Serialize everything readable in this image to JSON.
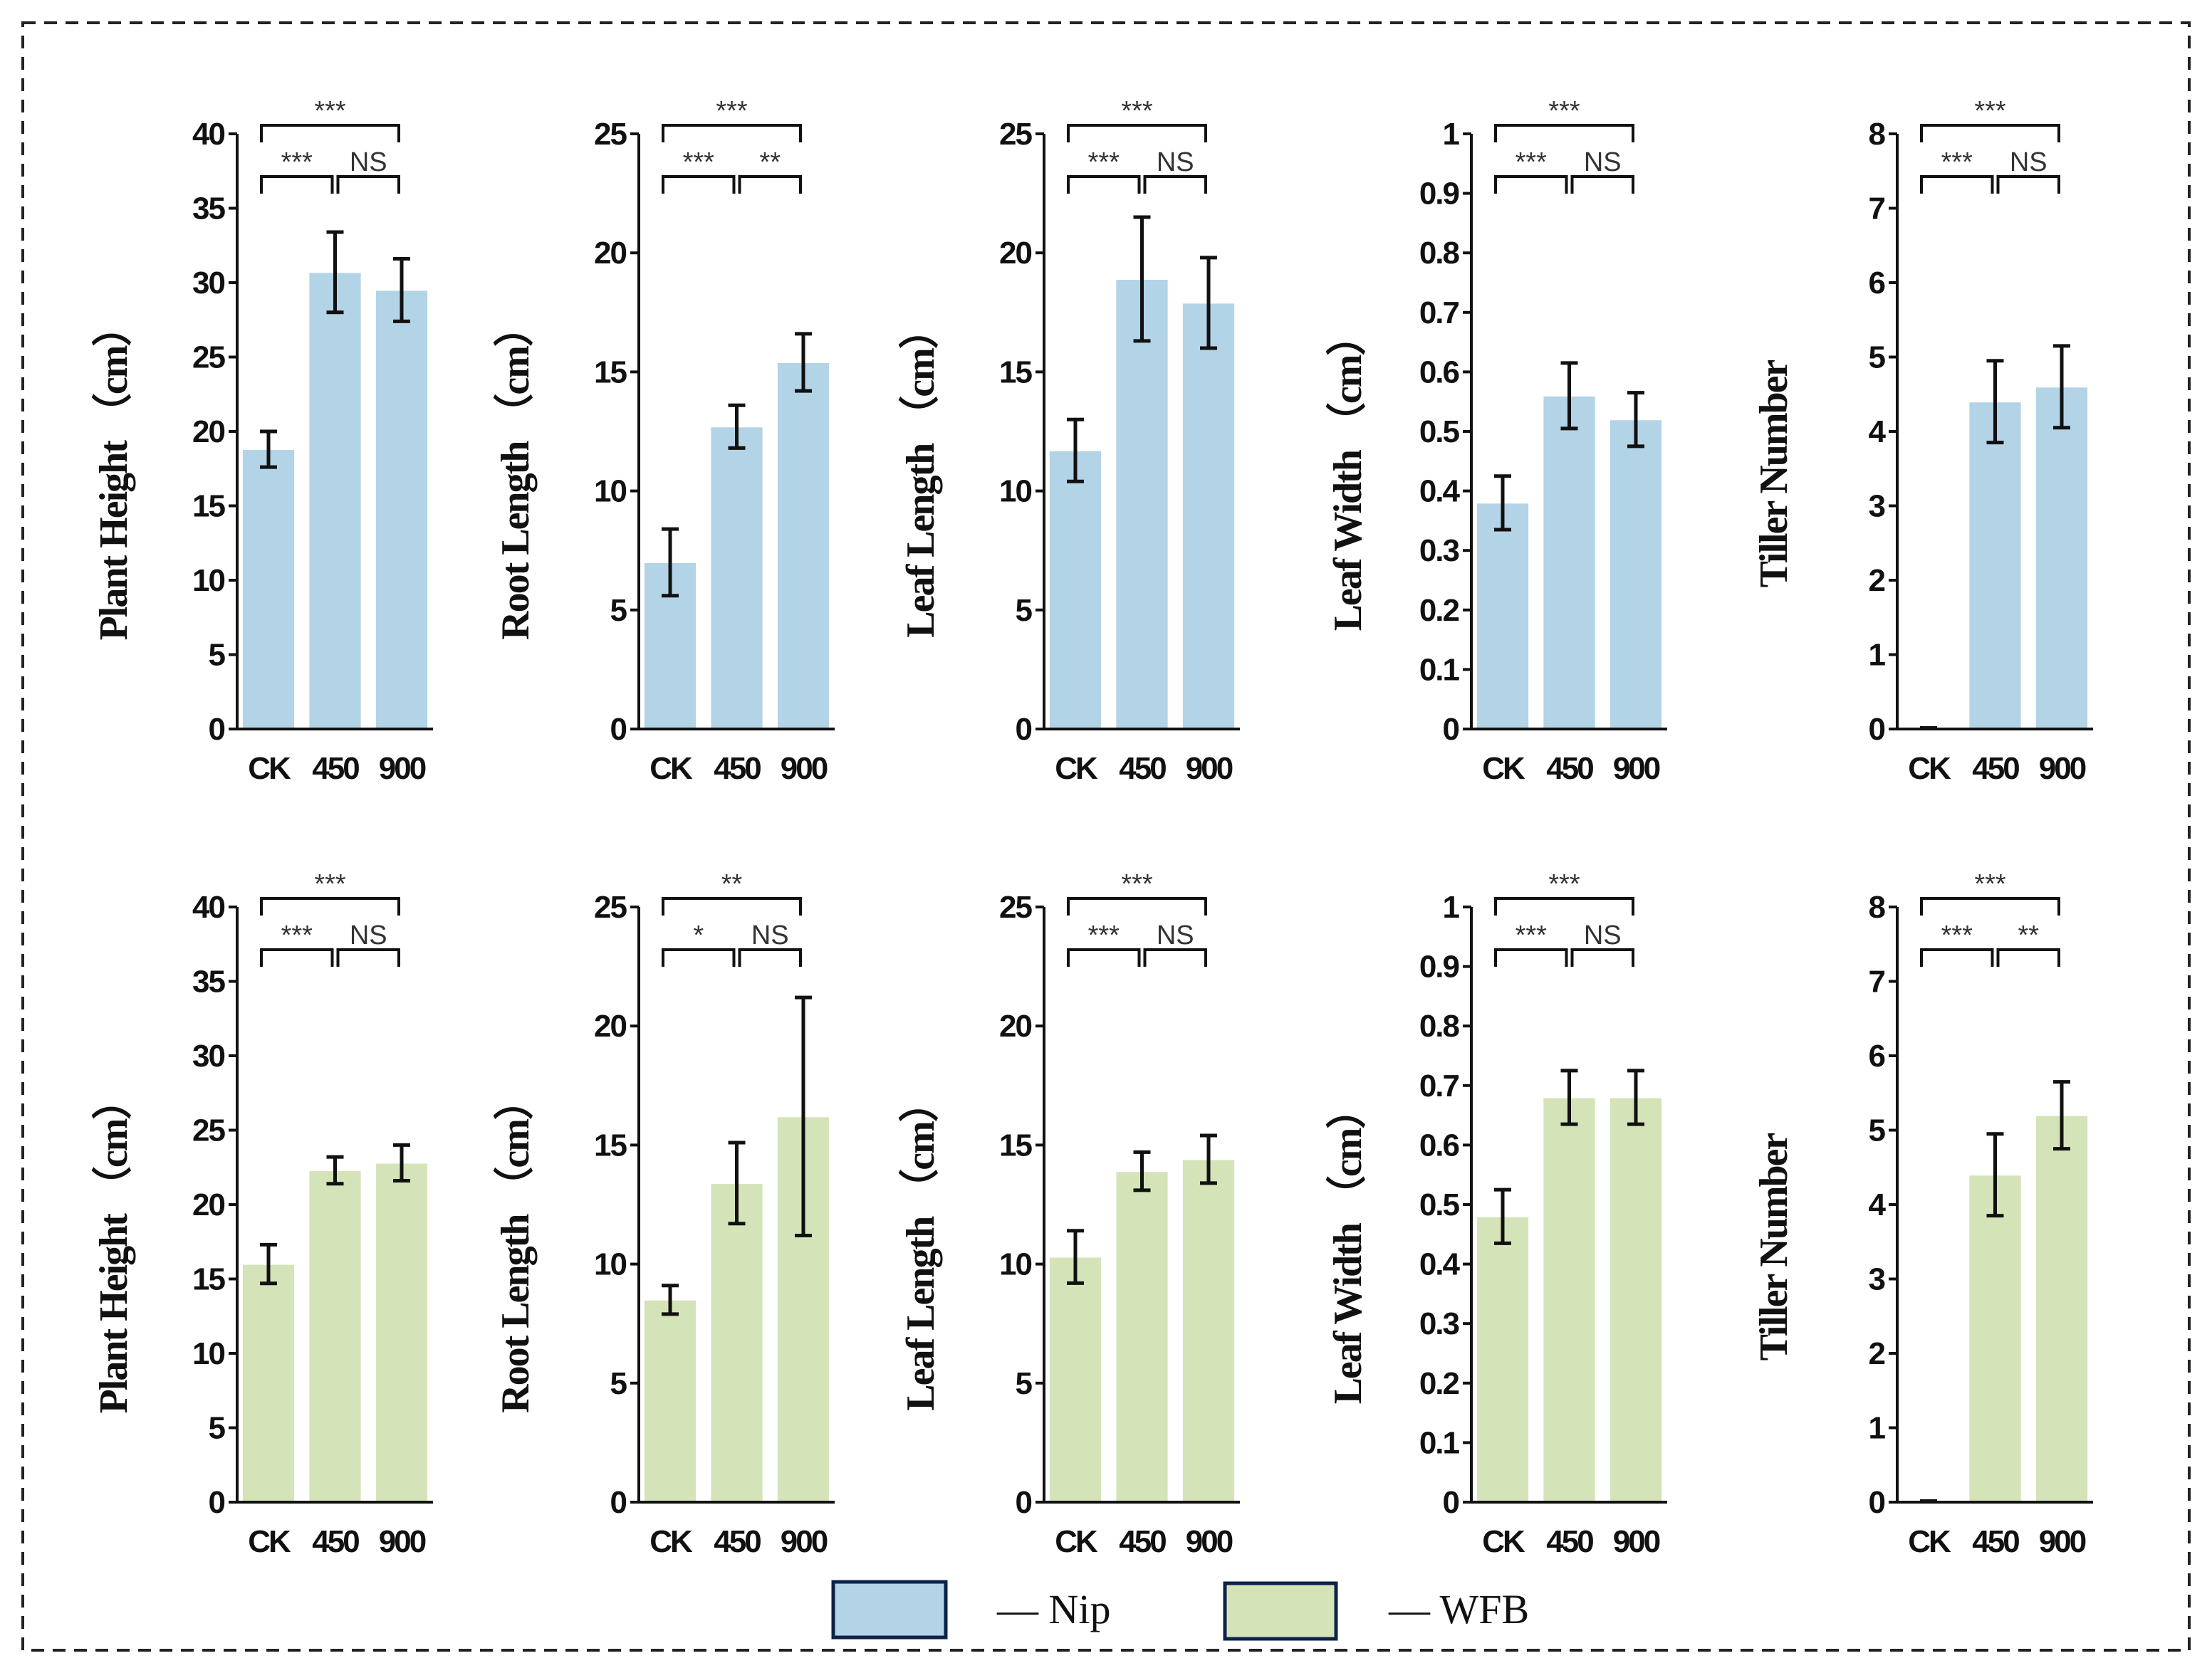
{
  "colors": {
    "Nip": "#b3d3e7",
    "WFB": "#d5e4b8",
    "edge": "#0d2248",
    "error": "#111111"
  },
  "legend": [
    {
      "label": "— Nip",
      "series": "Nip"
    },
    {
      "label": "— WFB",
      "series": "WFB"
    }
  ],
  "chart_data": [
    {
      "type": "bar",
      "series": "Nip",
      "ylabel": "Plant Height （cm）",
      "categories": [
        "CK",
        "450",
        "900"
      ],
      "values": [
        18.8,
        30.7,
        29.5
      ],
      "errors": [
        1.2,
        2.7,
        2.1
      ],
      "ylim": [
        0,
        40
      ],
      "yticks": [
        0,
        5,
        10,
        15,
        20,
        25,
        30,
        35,
        40
      ],
      "sig": {
        "ck_450": "***",
        "450_900": "NS",
        "ck_900": "***"
      }
    },
    {
      "type": "bar",
      "series": "Nip",
      "ylabel": "Root Length （cm）",
      "categories": [
        "CK",
        "450",
        "900"
      ],
      "values": [
        7.0,
        12.7,
        15.4
      ],
      "errors": [
        1.4,
        0.9,
        1.2
      ],
      "ylim": [
        0,
        25
      ],
      "yticks": [
        0,
        5,
        10,
        15,
        20,
        25
      ],
      "sig": {
        "ck_450": "***",
        "450_900": "**",
        "ck_900": "***"
      }
    },
    {
      "type": "bar",
      "series": "Nip",
      "ylabel": "Leaf Length （cm）",
      "categories": [
        "CK",
        "450",
        "900"
      ],
      "values": [
        11.7,
        18.9,
        17.9
      ],
      "errors": [
        1.3,
        2.6,
        1.9
      ],
      "ylim": [
        0,
        25
      ],
      "yticks": [
        0,
        5,
        10,
        15,
        20,
        25
      ],
      "sig": {
        "ck_450": "***",
        "450_900": "NS",
        "ck_900": "***"
      }
    },
    {
      "type": "bar",
      "series": "Nip",
      "ylabel": "Leaf Width （cm）",
      "categories": [
        "CK",
        "450",
        "900"
      ],
      "values": [
        0.38,
        0.56,
        0.52
      ],
      "errors": [
        0.045,
        0.055,
        0.045
      ],
      "ylim": [
        0,
        1
      ],
      "yticks": [
        0,
        0.1,
        0.2,
        0.3,
        0.4,
        0.5,
        0.6,
        0.7,
        0.8,
        0.9,
        1
      ],
      "sig": {
        "ck_450": "***",
        "450_900": "NS",
        "ck_900": "***"
      }
    },
    {
      "type": "bar",
      "series": "Nip",
      "ylabel": "Tiller Number",
      "categories": [
        "CK",
        "450",
        "900"
      ],
      "values": [
        0,
        4.4,
        4.6
      ],
      "errors": [
        0,
        0.55,
        0.55
      ],
      "ylim": [
        0,
        8
      ],
      "yticks": [
        0,
        1,
        2,
        3,
        4,
        5,
        6,
        7,
        8
      ],
      "sig": {
        "ck_450": "***",
        "450_900": "NS",
        "ck_900": "***"
      }
    },
    {
      "type": "bar",
      "series": "WFB",
      "ylabel": "Plant Height （cm）",
      "categories": [
        "CK",
        "450",
        "900"
      ],
      "values": [
        16.0,
        22.3,
        22.8
      ],
      "errors": [
        1.3,
        0.9,
        1.2
      ],
      "ylim": [
        0,
        40
      ],
      "yticks": [
        0,
        5,
        10,
        15,
        20,
        25,
        30,
        35,
        40
      ],
      "sig": {
        "ck_450": "***",
        "450_900": "NS",
        "ck_900": "***"
      }
    },
    {
      "type": "bar",
      "series": "WFB",
      "ylabel": "Root Length （cm）",
      "categories": [
        "CK",
        "450",
        "900"
      ],
      "values": [
        8.5,
        13.4,
        16.2
      ],
      "errors": [
        0.6,
        1.7,
        5.0
      ],
      "ylim": [
        0,
        25
      ],
      "yticks": [
        0,
        5,
        10,
        15,
        20,
        25
      ],
      "sig": {
        "ck_450": "*",
        "450_900": "NS",
        "ck_900": "**"
      }
    },
    {
      "type": "bar",
      "series": "WFB",
      "ylabel": "Leaf Length （cm）",
      "categories": [
        "CK",
        "450",
        "900"
      ],
      "values": [
        10.3,
        13.9,
        14.4
      ],
      "errors": [
        1.1,
        0.8,
        1.0
      ],
      "ylim": [
        0,
        25
      ],
      "yticks": [
        0,
        5,
        10,
        15,
        20,
        25
      ],
      "sig": {
        "ck_450": "***",
        "450_900": "NS",
        "ck_900": "***"
      }
    },
    {
      "type": "bar",
      "series": "WFB",
      "ylabel": "Leaf Width （cm）",
      "categories": [
        "CK",
        "450",
        "900"
      ],
      "values": [
        0.48,
        0.68,
        0.68
      ],
      "errors": [
        0.045,
        0.045,
        0.045
      ],
      "ylim": [
        0,
        1
      ],
      "yticks": [
        0,
        0.1,
        0.2,
        0.3,
        0.4,
        0.5,
        0.6,
        0.7,
        0.8,
        0.9,
        1
      ],
      "sig": {
        "ck_450": "***",
        "450_900": "NS",
        "ck_900": "***"
      }
    },
    {
      "type": "bar",
      "series": "WFB",
      "ylabel": "Tiller Number",
      "categories": [
        "CK",
        "450",
        "900"
      ],
      "values": [
        0,
        4.4,
        5.2
      ],
      "errors": [
        0,
        0.55,
        0.45
      ],
      "ylim": [
        0,
        8
      ],
      "yticks": [
        0,
        1,
        2,
        3,
        4,
        5,
        6,
        7,
        8
      ],
      "sig": {
        "ck_450": "***",
        "450_900": "**",
        "ck_900": "***"
      }
    }
  ]
}
